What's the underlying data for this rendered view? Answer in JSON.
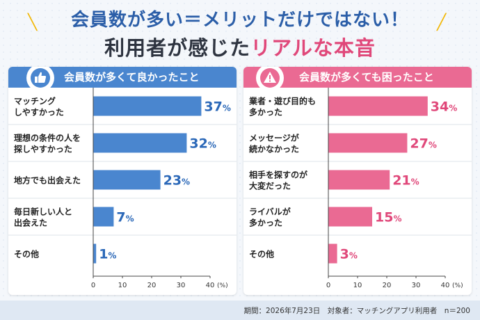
{
  "header": {
    "title_line1": "会員数が多い＝メリットだけではない！",
    "title_line2_prefix": "利用者が感じた",
    "title_line2_highlight": "リアルな本音"
  },
  "colors": {
    "blue": "#4a86cf",
    "blue_text": "#2b68b8",
    "pink": "#ea6a93",
    "pink_text": "#e0487a"
  },
  "icons": {
    "left": "thumbs-up-icon",
    "right": "warning-icon"
  },
  "footer": {
    "text": "期間：2026年7月23日　対象者：マッチングアプリ利用者　n＝200"
  },
  "chart_data": [
    {
      "type": "bar",
      "orientation": "horizontal",
      "title": "会員数が多くて良かったこと",
      "categories": [
        "マッチング\nしやすかった",
        "理想の条件の人を\n探しやすかった",
        "地方でも出会えた",
        "毎日新しい人と\n出会えた",
        "その他"
      ],
      "values": [
        37,
        32,
        23,
        7,
        1
      ],
      "unit": "%",
      "xlim": [
        0,
        40
      ],
      "xticks": [
        0,
        10,
        20,
        30,
        40
      ],
      "xtick_unit": "(%)"
    },
    {
      "type": "bar",
      "orientation": "horizontal",
      "title": "会員数が多くても困ったこと",
      "categories": [
        "業者・遊び目的も\n多かった",
        "メッセージが\n続かなかった",
        "相手を探すのが\n大変だった",
        "ライバルが\n多かった",
        "その他"
      ],
      "values": [
        34,
        27,
        21,
        15,
        3
      ],
      "unit": "%",
      "xlim": [
        0,
        40
      ],
      "xticks": [
        0,
        10,
        20,
        30,
        40
      ],
      "xtick_unit": "(%)"
    }
  ]
}
